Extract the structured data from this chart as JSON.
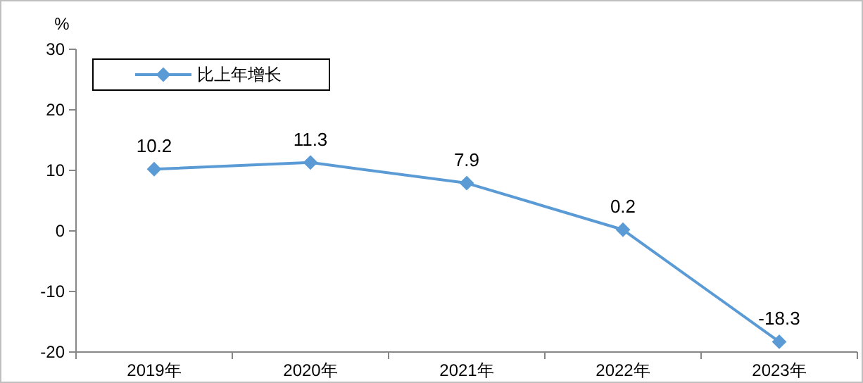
{
  "chart_data": {
    "type": "line",
    "ylabel": "%",
    "categories": [
      "2019年",
      "2020年",
      "2021年",
      "2022年",
      "2023年"
    ],
    "series": [
      {
        "name": "比上年增长",
        "color": "#5b9bd5",
        "values": [
          10.2,
          11.3,
          7.9,
          0.2,
          -18.3
        ]
      }
    ],
    "ylim": [
      -20,
      30
    ],
    "yticks": [
      -20,
      -10,
      0,
      10,
      20,
      30
    ],
    "legend": "top left",
    "marker": "diamond",
    "line_style": "solid",
    "data_labels": true
  }
}
